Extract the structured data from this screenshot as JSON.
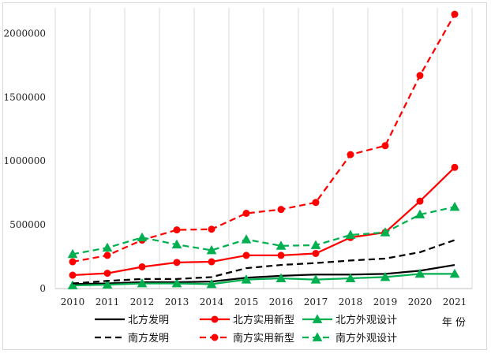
{
  "chart_data": {
    "type": "line",
    "xlabel": "年 份",
    "ylabel": "",
    "ylim": [
      0,
      2200000
    ],
    "y_ticks": [
      0,
      500000,
      1000000,
      1500000,
      2000000
    ],
    "y_tick_labels": [
      "0",
      "500000",
      "1000000",
      "1500000",
      "2000000"
    ],
    "x": [
      "2010",
      "2011",
      "2012",
      "2013",
      "2014",
      "2015",
      "2016",
      "2017",
      "2018",
      "2019",
      "2020",
      "2021"
    ],
    "grid": "vertical",
    "legend_position": "bottom",
    "series": [
      {
        "name": "北方发明",
        "color": "#000000",
        "dash": "solid",
        "marker": "none",
        "values": [
          35000,
          40000,
          50000,
          50000,
          55000,
          85000,
          100000,
          110000,
          110000,
          115000,
          140000,
          185000
        ]
      },
      {
        "name": "北方实用新型",
        "color": "#ff0000",
        "dash": "solid",
        "marker": "circle",
        "values": [
          105000,
          120000,
          170000,
          205000,
          210000,
          260000,
          260000,
          275000,
          400000,
          440000,
          685000,
          950000
        ]
      },
      {
        "name": "北方外观设计",
        "color": "#00b050",
        "dash": "solid",
        "marker": "triangle",
        "values": [
          25000,
          30000,
          40000,
          40000,
          35000,
          70000,
          80000,
          70000,
          80000,
          90000,
          115000,
          115000
        ]
      },
      {
        "name": "南方发明",
        "color": "#000000",
        "dash": "dashed",
        "marker": "none",
        "values": [
          40000,
          60000,
          75000,
          75000,
          90000,
          160000,
          185000,
          200000,
          220000,
          235000,
          285000,
          380000
        ]
      },
      {
        "name": "南方实用新型",
        "color": "#ff0000",
        "dash": "dashed",
        "marker": "circle",
        "values": [
          210000,
          260000,
          380000,
          460000,
          465000,
          590000,
          620000,
          675000,
          1050000,
          1120000,
          1670000,
          2150000
        ]
      },
      {
        "name": "南方外观设计",
        "color": "#00b050",
        "dash": "dashed",
        "marker": "triangle",
        "values": [
          270000,
          320000,
          400000,
          345000,
          300000,
          385000,
          335000,
          340000,
          420000,
          440000,
          580000,
          640000
        ]
      }
    ]
  }
}
